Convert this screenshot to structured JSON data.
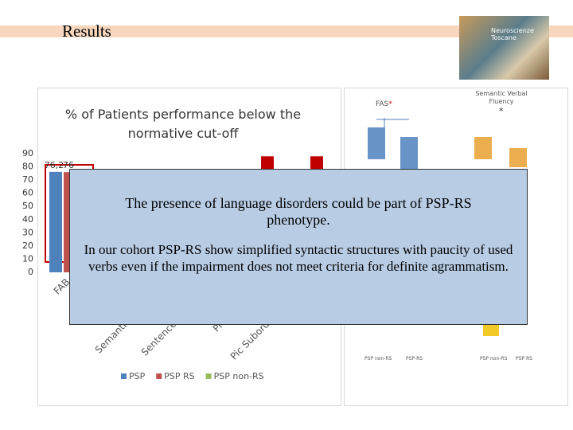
{
  "header": {
    "title": "Results"
  },
  "logo": {
    "text": "Neuroscienze Toscane"
  },
  "chart_data": {
    "type": "bar",
    "title": "% of Patients performance below the normative cut-off",
    "categories": [
      "FAB",
      "Semantic",
      "Sentence",
      "Pi",
      "Pic Subordin",
      null
    ],
    "series": [
      {
        "name": "PSP",
        "color": "#4f81bd",
        "values": [
          76.2,
          null,
          null,
          null,
          null,
          null
        ],
        "value_labels": [
          "76,2",
          null,
          null,
          null,
          null,
          null
        ]
      },
      {
        "name": "PSP RS",
        "color": "#c0504d",
        "values": [
          76,
          null,
          null,
          null,
          88,
          88
        ],
        "value_labels": [
          "76",
          null,
          null,
          null,
          null,
          null
        ]
      },
      {
        "name": "PSP non-RS",
        "color": "#9bbb59",
        "values": [
          null,
          null,
          null,
          null,
          null,
          null
        ]
      }
    ],
    "ylim": [
      0,
      90
    ],
    "yticks": [
      0,
      10,
      20,
      30,
      40,
      50,
      60,
      70,
      80,
      90
    ],
    "grid": false
  },
  "box_plots": [
    {
      "title": "FAS",
      "marker": "*",
      "categories": [
        "PSP non-RS",
        "PSP-RS"
      ]
    },
    {
      "title": "Semantic Verbal Fluency",
      "marker": "*",
      "categories": [
        "PSP non-RS",
        "PSP RS"
      ]
    }
  ],
  "overlay": {
    "paragraphs": [
      "The presence of language disorders could be part of PSP-RS phenotype.",
      "In our cohort PSP-RS show simplified syntactic structures with paucity of used verbs even if the impairment does not meet criteria for definite agrammatism."
    ]
  }
}
